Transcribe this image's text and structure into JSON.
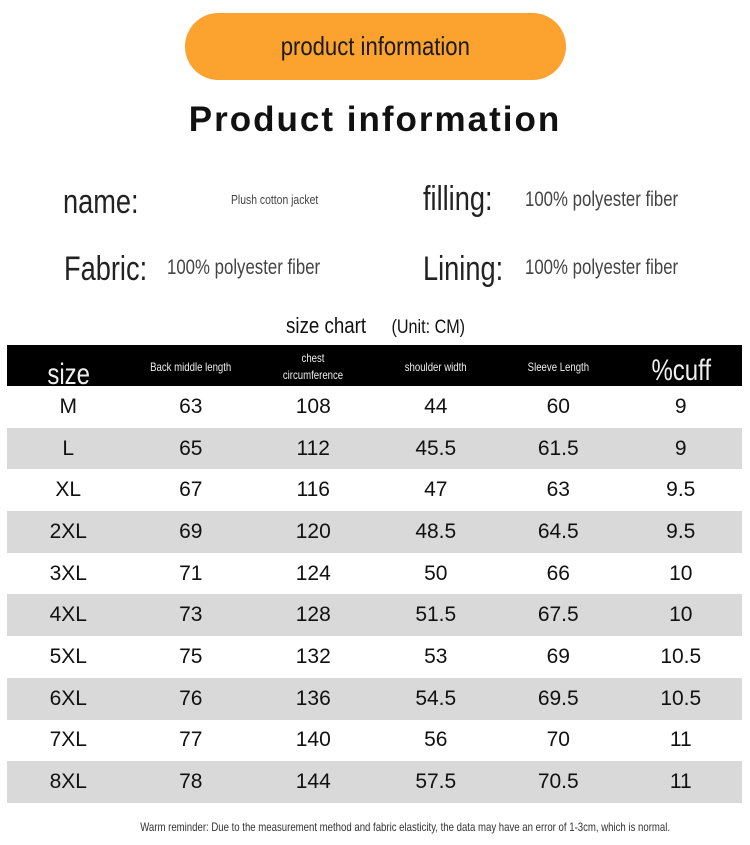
{
  "banner": "product information",
  "title": "Product information",
  "fields": [
    {
      "label": "name:",
      "value": "Plush cotton jacket"
    },
    {
      "label": "filling:",
      "value": "100% polyester fiber"
    },
    {
      "label": "Fabric:",
      "value": "100% polyester fiber"
    },
    {
      "label": "Lining:",
      "value": "100% polyester fiber"
    }
  ],
  "size_chart": {
    "title": "size chart",
    "unit": "(Unit: CM)"
  },
  "table": {
    "headers": [
      "size",
      "Back middle length",
      "chest circumference",
      "shoulder width",
      "Sleeve Length",
      "%cuff"
    ],
    "rows": [
      [
        "M",
        "63",
        "108",
        "44",
        "60",
        "9"
      ],
      [
        "L",
        "65",
        "112",
        "45.5",
        "61.5",
        "9"
      ],
      [
        "XL",
        "67",
        "116",
        "47",
        "63",
        "9.5"
      ],
      [
        "2XL",
        "69",
        "120",
        "48.5",
        "64.5",
        "9.5"
      ],
      [
        "3XL",
        "71",
        "124",
        "50",
        "66",
        "10"
      ],
      [
        "4XL",
        "73",
        "128",
        "51.5",
        "67.5",
        "10"
      ],
      [
        "5XL",
        "75",
        "132",
        "53",
        "69",
        "10.5"
      ],
      [
        "6XL",
        "76",
        "136",
        "54.5",
        "69.5",
        "10.5"
      ],
      [
        "7XL",
        "77",
        "140",
        "56",
        "70",
        "11"
      ],
      [
        "8XL",
        "78",
        "144",
        "57.5",
        "70.5",
        "11"
      ]
    ]
  },
  "note": "Warm reminder: Due to the measurement method and fabric elasticity, the data may have an error of 1-3cm, which is normal.",
  "colors": {
    "banner": "#fba22f",
    "header": "#000000",
    "stripe": "#d9d9d9"
  }
}
